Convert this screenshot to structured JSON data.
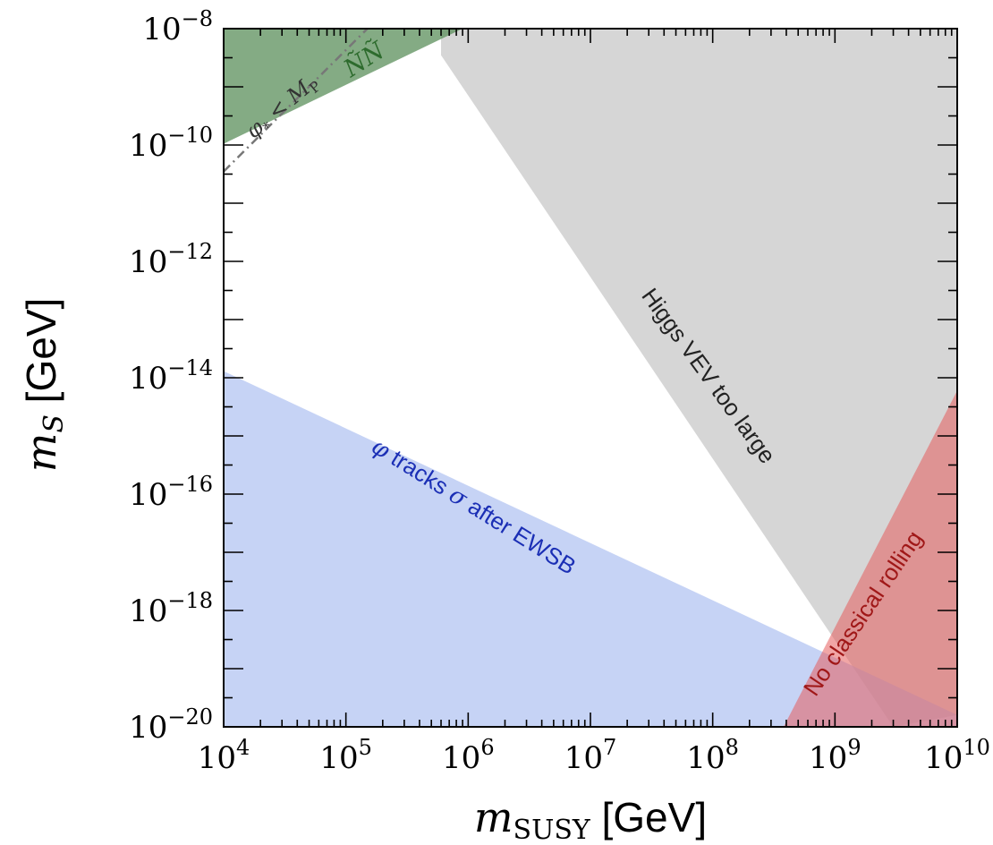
{
  "chart_data": {
    "type": "area",
    "xlabel": {
      "symbol": "m",
      "subscript": "SUSY",
      "unit": "[GeV]"
    },
    "ylabel": {
      "symbol": "m",
      "subscript": "S",
      "unit": "[GeV]"
    },
    "x_scale": "log",
    "y_scale": "log",
    "xlim": [
      10000,
      10000000000
    ],
    "ylim": [
      1e-20,
      1e-08
    ],
    "grid": false,
    "x_ticks": [
      {
        "value": 10000,
        "base": "10",
        "exp": "4"
      },
      {
        "value": 100000,
        "base": "10",
        "exp": "5"
      },
      {
        "value": 1000000,
        "base": "10",
        "exp": "6"
      },
      {
        "value": 10000000,
        "base": "10",
        "exp": "7"
      },
      {
        "value": 100000000,
        "base": "10",
        "exp": "8"
      },
      {
        "value": 1000000000,
        "base": "10",
        "exp": "9"
      },
      {
        "value": 10000000000,
        "base": "10",
        "exp": "10"
      }
    ],
    "y_ticks": [
      {
        "value": 1e-20,
        "base": "10",
        "exp": "−20"
      },
      {
        "value": 1e-18,
        "base": "10",
        "exp": "−18"
      },
      {
        "value": 1e-16,
        "base": "10",
        "exp": "−16"
      },
      {
        "value": 1e-14,
        "base": "10",
        "exp": "−14"
      },
      {
        "value": 1e-12,
        "base": "10",
        "exp": "−12"
      },
      {
        "value": 1e-10,
        "base": "10",
        "exp": "−10"
      },
      {
        "value": 1e-08,
        "base": "10",
        "exp": "−8"
      }
    ],
    "regions": [
      {
        "name": "Higgs VEV too large",
        "label": "Higgs VEV too large",
        "color": "#d6d6d6",
        "opacity": 1,
        "points": [
          [
            600000,
            1e-08
          ],
          [
            10000000000,
            1e-08
          ],
          [
            10000000000,
            1.6e-20
          ],
          [
            3000000000,
            1e-20
          ],
          [
            600000,
            3.5e-09
          ]
        ]
      },
      {
        "name": "Ñ Ñ",
        "label": "ÑÑ",
        "color": "#5b8f5b",
        "opacity": 0.75,
        "points": [
          [
            10000,
            1e-08
          ],
          [
            900000,
            1e-08
          ],
          [
            10000,
            1.05e-10
          ]
        ]
      },
      {
        "name": "φ tracks σ after EWSB",
        "label": "φ tracks σ after EWSB",
        "color": "#a8bcef",
        "opacity": 0.65,
        "points": [
          [
            10000,
            1.3e-14
          ],
          [
            10000000000,
            1.6e-20
          ],
          [
            10000000000,
            1e-20
          ],
          [
            10000,
            1e-20
          ]
        ]
      },
      {
        "name": "No classical rolling",
        "label": "No classical rolling",
        "color": "#e65c5c",
        "opacity": 0.55,
        "points": [
          [
            380000000,
            1e-20
          ],
          [
            10000000000,
            6e-15
          ],
          [
            10000000000,
            1e-20
          ]
        ]
      }
    ],
    "lines": [
      {
        "name": "φ* < M_P",
        "style": "dash-dot",
        "color": "#777777",
        "points": [
          [
            10000,
            3.5e-11
          ],
          [
            150000,
            1e-08
          ]
        ]
      }
    ],
    "annotations": {
      "higgs": "Higgs VEV too large",
      "blue_phi": "φ",
      "blue_rest": " tracks ",
      "blue_sigma": "σ",
      "blue_tail": " after EWSB",
      "red": "No classical rolling",
      "green": "ÑÑ",
      "dashed_phi": "φ",
      "dashed_star": "*",
      "dashed_lt": " < ",
      "dashed_M": "M",
      "dashed_P": "P"
    },
    "colors": {
      "higgs_text": "#222222",
      "blue_text": "#1b2fb5",
      "red_text": "#a01818",
      "green_text": "#2d6b2d",
      "dashed_text": "#333333"
    }
  }
}
